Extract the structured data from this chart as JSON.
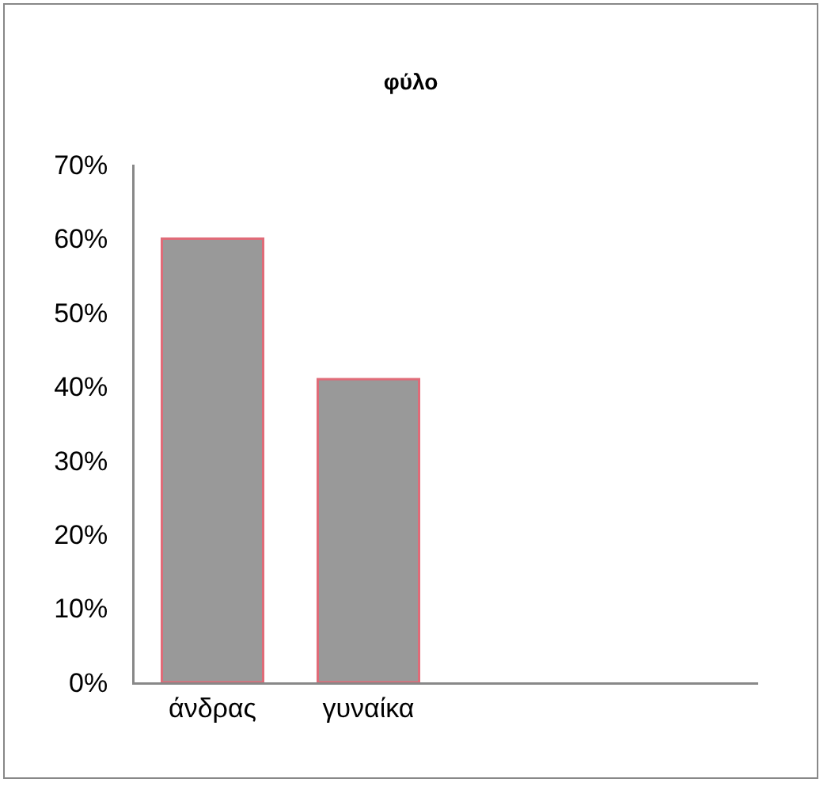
{
  "chart_data": {
    "type": "bar",
    "title": "φύλο",
    "categories": [
      "άνδρας",
      "γυναίκα",
      null,
      null
    ],
    "series": [
      {
        "color": "#999999",
        "values": [
          60,
          41,
          null,
          null
        ]
      }
    ],
    "ylim": [
      0,
      70
    ],
    "yticks": [
      {
        "value": 0,
        "label": "0%"
      },
      {
        "value": 10,
        "label": "10%"
      },
      {
        "value": 20,
        "label": "20%"
      },
      {
        "value": 30,
        "label": "30%"
      },
      {
        "value": 40,
        "label": "40%"
      },
      {
        "value": 50,
        "label": "50%"
      },
      {
        "value": 60,
        "label": "60%"
      },
      {
        "value": 70,
        "label": "70%"
      }
    ],
    "grid": false,
    "legend": false
  }
}
